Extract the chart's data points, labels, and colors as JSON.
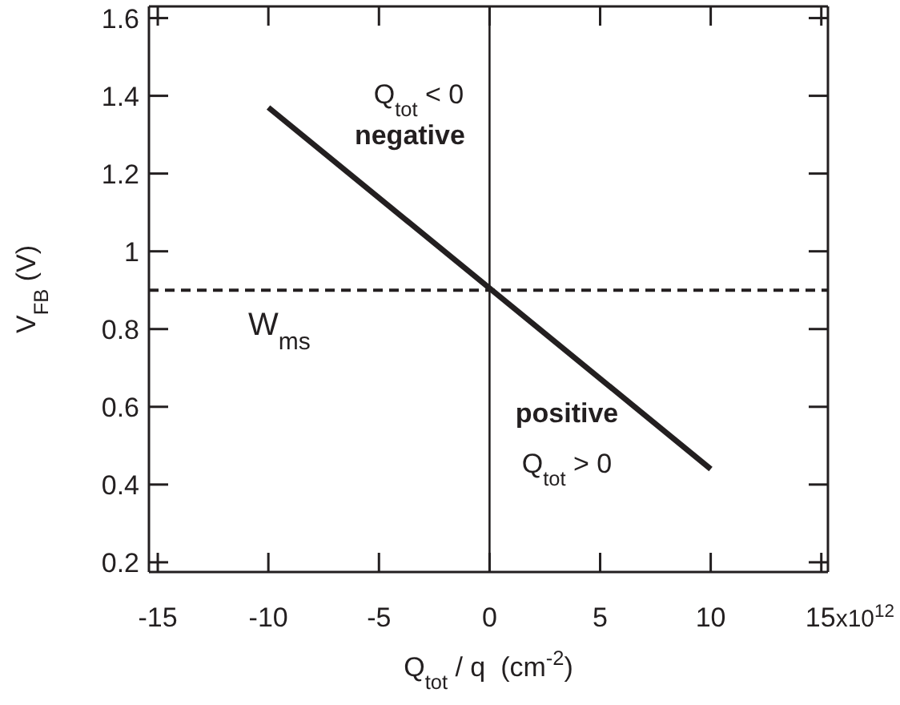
{
  "chart_data": {
    "type": "line",
    "xlabel": "Q$_{tot}$ / q  (cm$^{-2}$)",
    "ylabel": "V$_{FB}$ (V)",
    "x": [
      -10,
      10
    ],
    "series": [
      {
        "color": "#231f20",
        "values": [
          1.37,
          0.44
        ]
      }
    ],
    "xlim": [
      -15.4,
      15.3
    ],
    "ylim": [
      0.175,
      1.63
    ],
    "xticks": [
      -15,
      -10,
      -5,
      0,
      5,
      10,
      15
    ],
    "yticks": [
      0.2,
      0.4,
      0.6,
      0.8,
      1.0,
      1.2,
      1.4,
      1.6
    ],
    "ref_lines": [
      {
        "axis": "y",
        "value": 0.9,
        "label": "W$_{ms}$",
        "line_style": "dashed",
        "color": "#231f20"
      },
      {
        "axis": "x",
        "value": 0,
        "label": null,
        "line_style": "solid",
        "color": "#231f20"
      }
    ],
    "annotations": [
      "Q$_{tot}$ < 0",
      "negative",
      "positive",
      "Q$_{tot}$ > 0",
      "x10$^{12}$"
    ],
    "legend": false,
    "marker": "none",
    "line_style": "solid"
  }
}
